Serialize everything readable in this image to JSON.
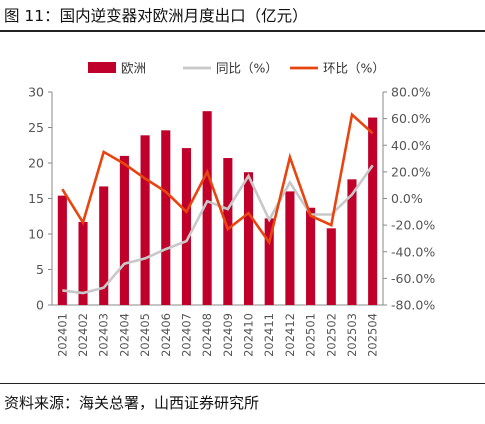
{
  "title": "图 11：国内逆变器对欧洲月度出口（亿元）",
  "source": "资料来源：海关总署，山西证券研究所",
  "chart_data": {
    "type": "bar",
    "categories": [
      "202401",
      "202402",
      "202403",
      "202404",
      "202405",
      "202406",
      "202407",
      "202408",
      "202409",
      "202410",
      "202411",
      "202412",
      "202501",
      "202502",
      "202503",
      "202504"
    ],
    "series": [
      {
        "name": "欧洲",
        "type": "bar",
        "axis": "left",
        "color": "#c0002a",
        "values": [
          15.4,
          11.7,
          16.7,
          21.0,
          23.9,
          24.6,
          22.1,
          27.3,
          20.7,
          18.7,
          12.2,
          16.0,
          13.7,
          10.8,
          17.7,
          26.4
        ]
      },
      {
        "name": "同比（%）",
        "type": "line",
        "axis": "right",
        "color": "#c8c8c8",
        "values": [
          -69,
          -71,
          -67,
          -49,
          -45,
          -38,
          -32,
          -2,
          -8,
          17,
          -16,
          12,
          -12,
          -12,
          3,
          25
        ]
      },
      {
        "name": "环比（%）",
        "type": "line",
        "axis": "right",
        "color": "#e8440f",
        "values": [
          7,
          -18,
          35,
          26,
          15,
          5,
          -10,
          20,
          -23,
          -11,
          -33,
          31,
          -13,
          -20,
          63,
          49
        ]
      }
    ],
    "left_axis": {
      "min": 0,
      "max": 30,
      "step": 5,
      "ticks": [
        "0",
        "5",
        "10",
        "15",
        "20",
        "25",
        "30"
      ]
    },
    "right_axis": {
      "min": -80,
      "max": 80,
      "step": 20,
      "ticks": [
        "-80.0%",
        "-60.0%",
        "-40.0%",
        "-20.0%",
        "0.0%",
        "20.0%",
        "40.0%",
        "60.0%",
        "80.0%"
      ]
    },
    "legend_position": "top",
    "grid": false
  }
}
